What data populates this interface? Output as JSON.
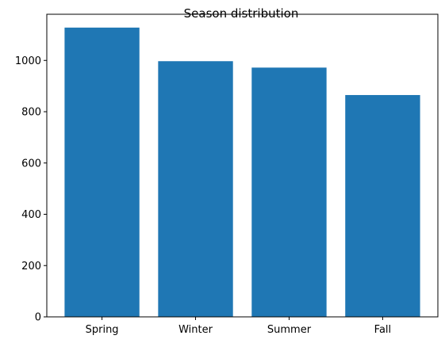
{
  "chart_data": {
    "type": "bar",
    "title": "Season distribution",
    "xlabel": "",
    "ylabel": "",
    "categories": [
      "Spring",
      "Winter",
      "Summer",
      "Fall"
    ],
    "values": [
      1128,
      997,
      972,
      865
    ],
    "ylim": [
      0,
      1180
    ],
    "yticks": [
      0,
      200,
      400,
      600,
      800,
      1000
    ],
    "bar_color": "#1f77b4",
    "grid": false,
    "legend": false
  }
}
